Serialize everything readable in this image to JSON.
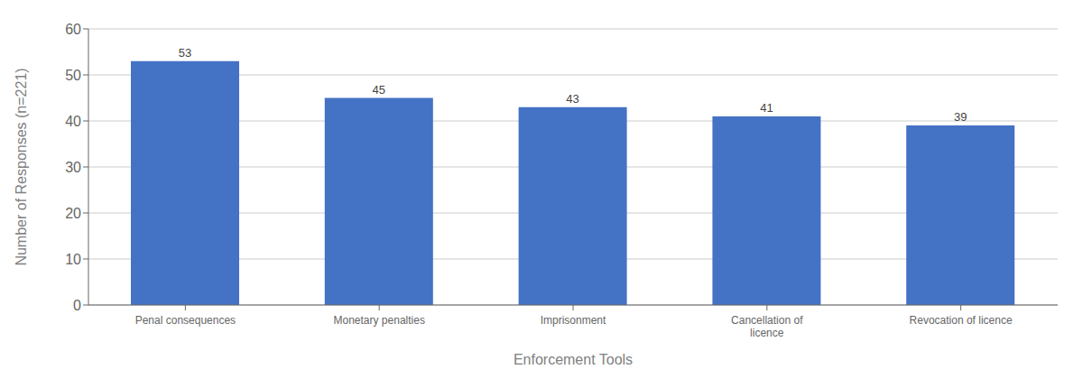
{
  "chart_data": {
    "type": "bar",
    "categories": [
      "Penal consequences",
      "Monetary penalties",
      "Imprisonment",
      "Cancellation of\nlicence",
      "Revocation of licence"
    ],
    "values": [
      53,
      45,
      43,
      41,
      39
    ],
    "color": "#4472C4",
    "xlabel": "Enforcement Tools",
    "ylabel": "Number of Responses (n=221)",
    "ylim": [
      0,
      60
    ],
    "yticks": [
      0,
      10,
      20,
      30,
      40,
      50,
      60
    ],
    "grid": true,
    "data_labels": true
  }
}
